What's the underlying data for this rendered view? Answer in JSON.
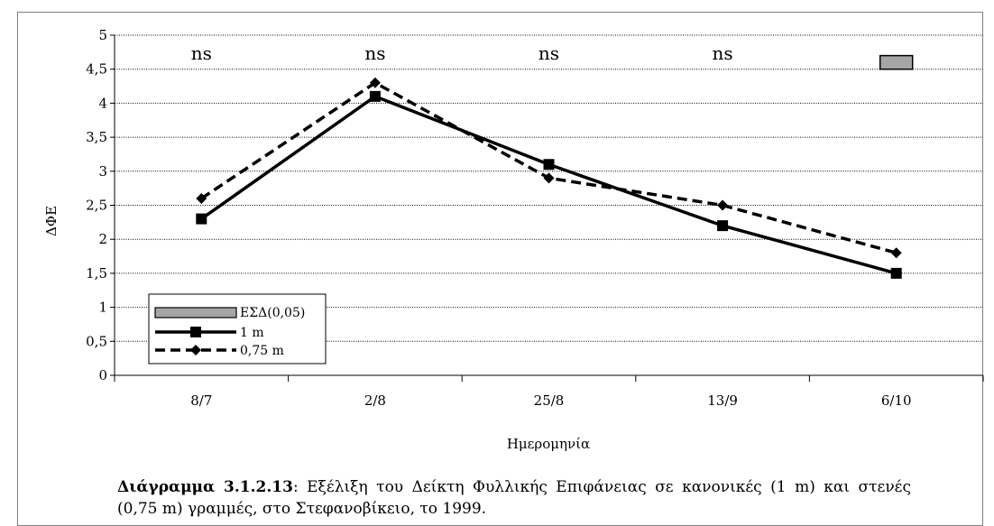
{
  "chart_data": {
    "type": "line",
    "title": "",
    "xlabel": "Ημερομηνία",
    "ylabel": "ΔΦΕ",
    "categories": [
      "8/7",
      "2/8",
      "25/8",
      "13/9",
      "6/10"
    ],
    "ylim": [
      0,
      5
    ],
    "yticks": [
      "0",
      "0,5",
      "1",
      "1,5",
      "2",
      "2,5",
      "3",
      "3,5",
      "4",
      "4,5",
      "5"
    ],
    "series": [
      {
        "name": "1 m",
        "values": [
          2.3,
          4.1,
          3.1,
          2.2,
          1.5
        ],
        "style": "solid",
        "marker": "square",
        "color": "#000000"
      },
      {
        "name": "0,75 m",
        "values": [
          2.6,
          4.3,
          2.9,
          2.5,
          1.8
        ],
        "style": "dashed",
        "marker": "diamond",
        "color": "#000000"
      }
    ],
    "annotations": [
      "ns",
      "ns",
      "ns",
      "ns"
    ],
    "lsd": {
      "name": "ΕΣΔ(0,05)",
      "category": "6/10",
      "low": 4.5,
      "high": 4.7,
      "color": "#a6a6a6"
    },
    "grid": true,
    "legend_position": "bottom-left"
  },
  "caption": {
    "label": "Διάγραμμα 3.1.2.13",
    "text": ": Εξέλιξη του Δείκτη Φυλλικής Επιφάνειας σε κανονικές (1 m) και στενές (0,75 m) γραμμές, στο Στεφανοβίκειο, το 1999."
  }
}
